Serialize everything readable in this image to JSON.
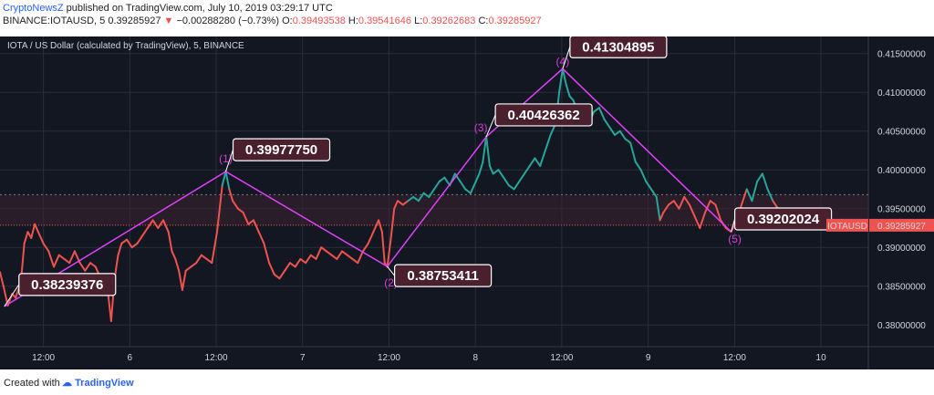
{
  "header": {
    "author": "CryptoNewsZ",
    "published_text": " published on TradingView.com, July 10, 2019 03:29:17 UTC",
    "symbol_label": "BINANCE:IOTAUSD, 5",
    "last_price": "0.39285927",
    "change": "−0.00288280 (−0.73%)",
    "open_label": "O:",
    "open_value": "0.39493538",
    "high_label": "H:",
    "high_value": "0.39541646",
    "low_label": "L:",
    "low_value": "0.39262683",
    "close_label": "C:",
    "close_value": "0.39285927"
  },
  "colors": {
    "background": "#131722",
    "grid": "#2a2e39",
    "down": "#ef5350",
    "up": "#26a69a",
    "wave_line": "#e040fb",
    "label_bg": "#4a1f2e",
    "price_tag": "#ef5350"
  },
  "chart_data": {
    "type": "line",
    "title": "IOTA / US Dollar (calculated by TradingView), 5, BINANCE",
    "x_tick_labels": [
      "12:00",
      "6",
      "12:00",
      "7",
      "12:00",
      "8",
      "12:00",
      "9",
      "12:00",
      "10"
    ],
    "y_tick_labels": [
      "0.41500000",
      "0.41000000",
      "0.40500000",
      "0.40000000",
      "0.39500000",
      "0.39000000",
      "0.38500000",
      "0.38000000"
    ],
    "ylim": [
      0.3772,
      0.4172
    ],
    "current_price_label": "0.39285927",
    "symbol_tag": "IOTAUSD",
    "price_series": [
      [
        0,
        0.3868
      ],
      [
        0.004,
        0.385
      ],
      [
        0.009,
        0.3825
      ],
      [
        0.014,
        0.384
      ],
      [
        0.018,
        0.3835
      ],
      [
        0.024,
        0.3855
      ],
      [
        0.028,
        0.3905
      ],
      [
        0.032,
        0.392
      ],
      [
        0.036,
        0.3912
      ],
      [
        0.04,
        0.393
      ],
      [
        0.044,
        0.392
      ],
      [
        0.05,
        0.3905
      ],
      [
        0.056,
        0.3895
      ],
      [
        0.062,
        0.3875
      ],
      [
        0.068,
        0.389
      ],
      [
        0.074,
        0.3885
      ],
      [
        0.08,
        0.388
      ],
      [
        0.086,
        0.3895
      ],
      [
        0.092,
        0.388
      ],
      [
        0.098,
        0.387
      ],
      [
        0.104,
        0.388
      ],
      [
        0.11,
        0.3875
      ],
      [
        0.116,
        0.386
      ],
      [
        0.12,
        0.3855
      ],
      [
        0.124,
        0.3845
      ],
      [
        0.128,
        0.3805
      ],
      [
        0.132,
        0.386
      ],
      [
        0.136,
        0.389
      ],
      [
        0.14,
        0.3905
      ],
      [
        0.146,
        0.391
      ],
      [
        0.152,
        0.39
      ],
      [
        0.158,
        0.3905
      ],
      [
        0.164,
        0.3915
      ],
      [
        0.17,
        0.3925
      ],
      [
        0.176,
        0.3935
      ],
      [
        0.182,
        0.3925
      ],
      [
        0.188,
        0.3935
      ],
      [
        0.194,
        0.392
      ],
      [
        0.198,
        0.3895
      ],
      [
        0.202,
        0.3885
      ],
      [
        0.206,
        0.387
      ],
      [
        0.21,
        0.3845
      ],
      [
        0.214,
        0.387
      ],
      [
        0.22,
        0.3875
      ],
      [
        0.226,
        0.388
      ],
      [
        0.232,
        0.389
      ],
      [
        0.238,
        0.3885
      ],
      [
        0.244,
        0.388
      ],
      [
        0.25,
        0.392
      ],
      [
        0.256,
        0.398
      ],
      [
        0.26,
        0.3998
      ],
      [
        0.264,
        0.3975
      ],
      [
        0.268,
        0.396
      ],
      [
        0.274,
        0.395
      ],
      [
        0.28,
        0.3945
      ],
      [
        0.286,
        0.393
      ],
      [
        0.292,
        0.3935
      ],
      [
        0.298,
        0.392
      ],
      [
        0.304,
        0.3905
      ],
      [
        0.31,
        0.388
      ],
      [
        0.316,
        0.3865
      ],
      [
        0.322,
        0.386
      ],
      [
        0.328,
        0.387
      ],
      [
        0.334,
        0.388
      ],
      [
        0.34,
        0.3875
      ],
      [
        0.346,
        0.3885
      ],
      [
        0.352,
        0.388
      ],
      [
        0.358,
        0.389
      ],
      [
        0.364,
        0.3885
      ],
      [
        0.37,
        0.39
      ],
      [
        0.376,
        0.3895
      ],
      [
        0.382,
        0.389
      ],
      [
        0.388,
        0.3885
      ],
      [
        0.394,
        0.3895
      ],
      [
        0.4,
        0.389
      ],
      [
        0.406,
        0.3885
      ],
      [
        0.412,
        0.388
      ],
      [
        0.418,
        0.3895
      ],
      [
        0.424,
        0.3905
      ],
      [
        0.43,
        0.392
      ],
      [
        0.436,
        0.3935
      ],
      [
        0.44,
        0.392
      ],
      [
        0.443,
        0.388
      ],
      [
        0.446,
        0.3875
      ],
      [
        0.45,
        0.391
      ],
      [
        0.454,
        0.395
      ],
      [
        0.458,
        0.396
      ],
      [
        0.464,
        0.3955
      ],
      [
        0.47,
        0.396
      ],
      [
        0.476,
        0.3965
      ],
      [
        0.482,
        0.396
      ],
      [
        0.488,
        0.397
      ],
      [
        0.494,
        0.3965
      ],
      [
        0.5,
        0.3975
      ],
      [
        0.506,
        0.3985
      ],
      [
        0.512,
        0.399
      ],
      [
        0.518,
        0.398
      ],
      [
        0.524,
        0.3995
      ],
      [
        0.53,
        0.3985
      ],
      [
        0.536,
        0.3975
      ],
      [
        0.542,
        0.397
      ],
      [
        0.548,
        0.3985
      ],
      [
        0.552,
        0.3995
      ],
      [
        0.556,
        0.401
      ],
      [
        0.56,
        0.4043
      ],
      [
        0.564,
        0.4005
      ],
      [
        0.568,
        0.3995
      ],
      [
        0.574,
        0.4
      ],
      [
        0.58,
        0.399
      ],
      [
        0.586,
        0.398
      ],
      [
        0.592,
        0.3975
      ],
      [
        0.598,
        0.3985
      ],
      [
        0.604,
        0.3995
      ],
      [
        0.61,
        0.4005
      ],
      [
        0.616,
        0.4015
      ],
      [
        0.622,
        0.4005
      ],
      [
        0.628,
        0.4025
      ],
      [
        0.634,
        0.4045
      ],
      [
        0.64,
        0.406
      ],
      [
        0.644,
        0.41
      ],
      [
        0.648,
        0.413
      ],
      [
        0.652,
        0.411
      ],
      [
        0.656,
        0.4095
      ],
      [
        0.66,
        0.409
      ],
      [
        0.666,
        0.4075
      ],
      [
        0.672,
        0.4065
      ],
      [
        0.678,
        0.406
      ],
      [
        0.684,
        0.4075
      ],
      [
        0.69,
        0.408
      ],
      [
        0.696,
        0.4065
      ],
      [
        0.702,
        0.4055
      ],
      [
        0.708,
        0.4045
      ],
      [
        0.714,
        0.405
      ],
      [
        0.72,
        0.404
      ],
      [
        0.726,
        0.4035
      ],
      [
        0.732,
        0.401
      ],
      [
        0.738,
        0.4
      ],
      [
        0.744,
        0.3985
      ],
      [
        0.75,
        0.3975
      ],
      [
        0.756,
        0.3965
      ],
      [
        0.76,
        0.3935
      ],
      [
        0.764,
        0.3945
      ],
      [
        0.77,
        0.3955
      ],
      [
        0.776,
        0.396
      ],
      [
        0.782,
        0.395
      ],
      [
        0.788,
        0.3965
      ],
      [
        0.794,
        0.3955
      ],
      [
        0.8,
        0.394
      ],
      [
        0.806,
        0.3925
      ],
      [
        0.812,
        0.3945
      ],
      [
        0.818,
        0.396
      ],
      [
        0.824,
        0.3955
      ],
      [
        0.83,
        0.3935
      ],
      [
        0.836,
        0.3925
      ],
      [
        0.842,
        0.392
      ],
      [
        0.848,
        0.3935
      ],
      [
        0.854,
        0.3955
      ],
      [
        0.86,
        0.3975
      ],
      [
        0.866,
        0.396
      ],
      [
        0.872,
        0.3985
      ],
      [
        0.878,
        0.3995
      ],
      [
        0.884,
        0.3975
      ],
      [
        0.89,
        0.396
      ],
      [
        0.896,
        0.395
      ],
      [
        0.902,
        0.394
      ],
      [
        0.908,
        0.3935
      ],
      [
        0.914,
        0.3928
      ]
    ],
    "wave_points": [
      {
        "label": "",
        "x": 0.005,
        "y": 0.38239376
      },
      {
        "label": "(1)",
        "x": 0.26,
        "y": 0.3997775
      },
      {
        "label": "(2)",
        "x": 0.446,
        "y": 0.38753411
      },
      {
        "label": "(3)",
        "x": 0.56,
        "y": 0.40426362
      },
      {
        "label": "(4)",
        "x": 0.648,
        "y": 0.41304895
      },
      {
        "label": "(5)",
        "x": 0.842,
        "y": 0.39202024
      }
    ],
    "annotations": [
      "0.38239376",
      "0.39977750",
      "0.38753411",
      "0.40426362",
      "0.41304895",
      "0.39202024"
    ]
  },
  "footer": {
    "created_with": "Created with",
    "tradingview": "TradingView"
  }
}
